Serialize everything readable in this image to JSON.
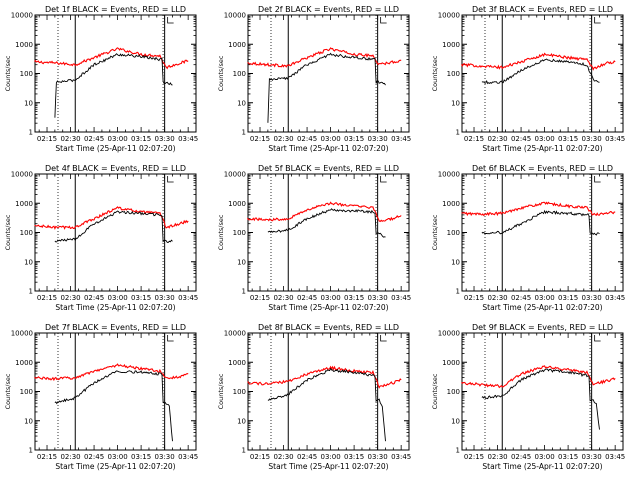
{
  "chart_data": [
    {
      "type": "line",
      "title": "Det 1f BLACK = Events, RED = LLD",
      "xlabel": "Start Time (25-Apr-11 02:07:20)",
      "ylabel": "Counts/sec",
      "log_y": true,
      "ylim": [
        1,
        10000
      ],
      "xlim": [
        "02:07:20",
        "03:50:00"
      ],
      "x_tick_labels": [
        "02:15",
        "02:30",
        "02:45",
        "03:00",
        "03:15",
        "03:30",
        "03:45"
      ],
      "y_tick_labels": [
        "1",
        "10",
        "100",
        "1000",
        "10000"
      ],
      "dotted_lines": [
        "02:22",
        "03:29"
      ],
      "solid_lines": [
        "02:33",
        "03:30"
      ],
      "series": [
        {
          "color": "#ff0000",
          "x": [
            "02:07",
            "02:20",
            "02:33",
            "02:45",
            "03:00",
            "03:15",
            "03:27",
            "03:31",
            "03:40",
            "03:45"
          ],
          "values": [
            250,
            230,
            200,
            350,
            700,
            450,
            400,
            160,
            230,
            270
          ]
        },
        {
          "color": "#000000",
          "x": [
            "02:20",
            "02:21",
            "02:33",
            "02:45",
            "03:00",
            "03:15",
            "03:27",
            "03:31",
            "03:35"
          ],
          "values": [
            3,
            50,
            60,
            200,
            450,
            380,
            300,
            50,
            40
          ]
        }
      ]
    },
    {
      "type": "line",
      "title": "Det 2f BLACK = Events, RED = LLD",
      "xlabel": "Start Time (25-Apr-11 02:07:20)",
      "ylabel": "Counts/sec",
      "log_y": true,
      "ylim": [
        1,
        10000
      ],
      "xlim": [
        "02:07:20",
        "03:50:00"
      ],
      "x_tick_labels": [
        "02:15",
        "02:30",
        "02:45",
        "03:00",
        "03:15",
        "03:30",
        "03:45"
      ],
      "y_tick_labels": [
        "1",
        "10",
        "100",
        "1000",
        "10000"
      ],
      "dotted_lines": [
        "02:22",
        "03:29"
      ],
      "solid_lines": [
        "02:33",
        "03:30"
      ],
      "series": [
        {
          "color": "#ff0000",
          "x": [
            "02:07",
            "02:20",
            "02:33",
            "02:45",
            "03:00",
            "03:15",
            "03:27",
            "03:31",
            "03:40",
            "03:45"
          ],
          "values": [
            230,
            200,
            180,
            350,
            700,
            450,
            400,
            200,
            250,
            280
          ]
        },
        {
          "color": "#000000",
          "x": [
            "02:20",
            "02:21",
            "02:33",
            "02:45",
            "03:00",
            "03:15",
            "03:27",
            "03:31",
            "03:35"
          ],
          "values": [
            2,
            60,
            70,
            200,
            450,
            350,
            300,
            50,
            40
          ]
        }
      ]
    },
    {
      "type": "line",
      "title": "Det 3f BLACK = Events, RED = LLD",
      "xlabel": "Start Time (25-Apr-11 02:07:20)",
      "ylabel": "Counts/sec",
      "log_y": true,
      "ylim": [
        1,
        10000
      ],
      "xlim": [
        "02:07:20",
        "03:50:00"
      ],
      "x_tick_labels": [
        "02:15",
        "02:30",
        "02:45",
        "03:00",
        "03:15",
        "03:30",
        "03:45"
      ],
      "y_tick_labels": [
        "1",
        "10",
        "100",
        "1000",
        "10000"
      ],
      "dotted_lines": [
        "02:22",
        "03:29"
      ],
      "solid_lines": [
        "02:33",
        "03:30"
      ],
      "series": [
        {
          "color": "#ff0000",
          "x": [
            "02:07",
            "02:20",
            "02:33",
            "02:45",
            "03:00",
            "03:15",
            "03:27",
            "03:31",
            "03:40",
            "03:45"
          ],
          "values": [
            200,
            180,
            160,
            250,
            450,
            350,
            300,
            150,
            230,
            250
          ]
        },
        {
          "color": "#000000",
          "x": [
            "02:20",
            "02:33",
            "02:45",
            "03:00",
            "03:15",
            "03:27",
            "03:31",
            "03:35"
          ],
          "values": [
            50,
            50,
            130,
            300,
            250,
            200,
            60,
            50
          ]
        }
      ]
    },
    {
      "type": "line",
      "title": "Det 4f BLACK = Events, RED = LLD",
      "xlabel": "Start Time (25-Apr-11 02:07:20)",
      "ylabel": "Counts/sec",
      "log_y": true,
      "ylim": [
        1,
        10000
      ],
      "xlim": [
        "02:07:20",
        "03:50:00"
      ],
      "x_tick_labels": [
        "02:15",
        "02:30",
        "02:45",
        "03:00",
        "03:15",
        "03:30",
        "03:45"
      ],
      "y_tick_labels": [
        "1",
        "10",
        "100",
        "1000",
        "10000"
      ],
      "dotted_lines": [
        "02:22",
        "03:29"
      ],
      "solid_lines": [
        "02:33",
        "03:30"
      ],
      "series": [
        {
          "color": "#ff0000",
          "x": [
            "02:07",
            "02:20",
            "02:33",
            "02:45",
            "03:00",
            "03:15",
            "03:27",
            "03:31",
            "03:40",
            "03:45"
          ],
          "values": [
            170,
            150,
            150,
            300,
            700,
            500,
            450,
            150,
            200,
            250
          ]
        },
        {
          "color": "#000000",
          "x": [
            "02:20",
            "02:33",
            "02:45",
            "03:00",
            "03:15",
            "03:27",
            "03:31",
            "03:35"
          ],
          "values": [
            50,
            60,
            200,
            500,
            450,
            400,
            50,
            50
          ]
        }
      ]
    },
    {
      "type": "line",
      "title": "Det 5f BLACK = Events, RED = LLD",
      "xlabel": "Start Time (25-Apr-11 02:07:20)",
      "ylabel": "Counts/sec",
      "log_y": true,
      "ylim": [
        1,
        10000
      ],
      "xlim": [
        "02:07:20",
        "03:50:00"
      ],
      "x_tick_labels": [
        "02:15",
        "02:30",
        "02:45",
        "03:00",
        "03:15",
        "03:30",
        "03:45"
      ],
      "y_tick_labels": [
        "1",
        "10",
        "100",
        "1000",
        "10000"
      ],
      "dotted_lines": [
        "02:22",
        "03:29"
      ],
      "solid_lines": [
        "02:33",
        "03:30"
      ],
      "series": [
        {
          "color": "#ff0000",
          "x": [
            "02:07",
            "02:20",
            "02:33",
            "02:45",
            "03:00",
            "03:15",
            "03:27",
            "03:31",
            "03:40",
            "03:45"
          ],
          "values": [
            300,
            270,
            300,
            600,
            1000,
            800,
            700,
            250,
            300,
            380
          ]
        },
        {
          "color": "#000000",
          "x": [
            "02:20",
            "02:33",
            "02:45",
            "03:00",
            "03:15",
            "03:27",
            "03:31",
            "03:35"
          ],
          "values": [
            100,
            120,
            300,
            600,
            550,
            500,
            90,
            70
          ]
        }
      ]
    },
    {
      "type": "line",
      "title": "Det 6f BLACK = Events, RED = LLD",
      "xlabel": "Start Time (25-Apr-11 02:07:20)",
      "ylabel": "Counts/sec",
      "log_y": true,
      "ylim": [
        1,
        10000
      ],
      "xlim": [
        "02:07:20",
        "03:50:00"
      ],
      "x_tick_labels": [
        "02:15",
        "02:30",
        "02:45",
        "03:00",
        "03:15",
        "03:30",
        "03:45"
      ],
      "y_tick_labels": [
        "1",
        "10",
        "100",
        "1000",
        "10000"
      ],
      "dotted_lines": [
        "02:22",
        "03:29"
      ],
      "solid_lines": [
        "02:33",
        "03:30"
      ],
      "series": [
        {
          "color": "#ff0000",
          "x": [
            "02:07",
            "02:20",
            "02:33",
            "02:45",
            "03:00",
            "03:15",
            "03:27",
            "03:31",
            "03:40",
            "03:45"
          ],
          "values": [
            450,
            420,
            450,
            700,
            1000,
            800,
            700,
            400,
            450,
            500
          ]
        },
        {
          "color": "#000000",
          "x": [
            "02:20",
            "02:33",
            "02:45",
            "03:00",
            "03:15",
            "03:27",
            "03:31",
            "03:35"
          ],
          "values": [
            100,
            100,
            200,
            500,
            450,
            400,
            90,
            90
          ]
        }
      ]
    },
    {
      "type": "line",
      "title": "Det 7f BLACK = Events, RED = LLD",
      "xlabel": "Start Time (25-Apr-11 02:07:20)",
      "ylabel": "Counts/sec",
      "log_y": true,
      "ylim": [
        1,
        10000
      ],
      "xlim": [
        "02:07:20",
        "03:50:00"
      ],
      "x_tick_labels": [
        "02:15",
        "02:30",
        "02:45",
        "03:00",
        "03:15",
        "03:30",
        "03:45"
      ],
      "y_tick_labels": [
        "1",
        "10",
        "100",
        "1000",
        "10000"
      ],
      "dotted_lines": [
        "02:22",
        "03:29"
      ],
      "solid_lines": [
        "02:33",
        "03:30"
      ],
      "series": [
        {
          "color": "#ff0000",
          "x": [
            "02:07",
            "02:20",
            "02:33",
            "02:45",
            "03:00",
            "03:15",
            "03:27",
            "03:31",
            "03:40",
            "03:45"
          ],
          "values": [
            300,
            270,
            300,
            500,
            800,
            600,
            500,
            280,
            320,
            400
          ]
        },
        {
          "color": "#000000",
          "x": [
            "02:20",
            "02:33",
            "02:45",
            "03:00",
            "03:15",
            "03:27",
            "03:31",
            "03:33",
            "03:35"
          ],
          "values": [
            40,
            60,
            200,
            500,
            450,
            400,
            40,
            30,
            2
          ]
        }
      ]
    },
    {
      "type": "line",
      "title": "Det 8f BLACK = Events, RED = LLD",
      "xlabel": "Start Time (25-Apr-11 02:07:20)",
      "ylabel": "Counts/sec",
      "log_y": true,
      "ylim": [
        1,
        10000
      ],
      "xlim": [
        "02:07:20",
        "03:50:00"
      ],
      "x_tick_labels": [
        "02:15",
        "02:30",
        "02:45",
        "03:00",
        "03:15",
        "03:30",
        "03:45"
      ],
      "y_tick_labels": [
        "1",
        "10",
        "100",
        "1000",
        "10000"
      ],
      "dotted_lines": [
        "02:22",
        "03:29"
      ],
      "solid_lines": [
        "02:33",
        "03:30"
      ],
      "series": [
        {
          "color": "#ff0000",
          "x": [
            "02:07",
            "02:20",
            "02:33",
            "02:45",
            "03:00",
            "03:15",
            "03:27",
            "03:31",
            "03:40",
            "03:45"
          ],
          "values": [
            200,
            180,
            220,
            400,
            650,
            500,
            450,
            150,
            200,
            250
          ]
        },
        {
          "color": "#000000",
          "x": [
            "02:20",
            "02:33",
            "02:45",
            "03:00",
            "03:15",
            "03:27",
            "03:31",
            "03:33",
            "03:35"
          ],
          "values": [
            50,
            80,
            250,
            550,
            450,
            350,
            50,
            30,
            2
          ]
        }
      ]
    },
    {
      "type": "line",
      "title": "Det 9f BLACK = Events, RED = LLD",
      "xlabel": "Start Time (25-Apr-11 02:07:20)",
      "ylabel": "Counts/sec",
      "log_y": true,
      "ylim": [
        1,
        10000
      ],
      "xlim": [
        "02:07:20",
        "03:50:00"
      ],
      "x_tick_labels": [
        "02:15",
        "02:30",
        "02:45",
        "03:00",
        "03:15",
        "03:30",
        "03:45"
      ],
      "y_tick_labels": [
        "1",
        "10",
        "100",
        "1000",
        "10000"
      ],
      "dotted_lines": [
        "02:22",
        "03:29"
      ],
      "solid_lines": [
        "02:33",
        "03:30"
      ],
      "series": [
        {
          "color": "#ff0000",
          "x": [
            "02:07",
            "02:20",
            "02:33",
            "02:45",
            "03:00",
            "03:15",
            "03:27",
            "03:31",
            "03:40",
            "03:45"
          ],
          "values": [
            200,
            170,
            150,
            400,
            700,
            550,
            450,
            180,
            230,
            280
          ]
        },
        {
          "color": "#000000",
          "x": [
            "02:20",
            "02:33",
            "02:45",
            "03:00",
            "03:15",
            "03:27",
            "03:31",
            "03:33",
            "03:35"
          ],
          "values": [
            60,
            70,
            250,
            550,
            450,
            350,
            50,
            40,
            5
          ]
        }
      ]
    }
  ]
}
